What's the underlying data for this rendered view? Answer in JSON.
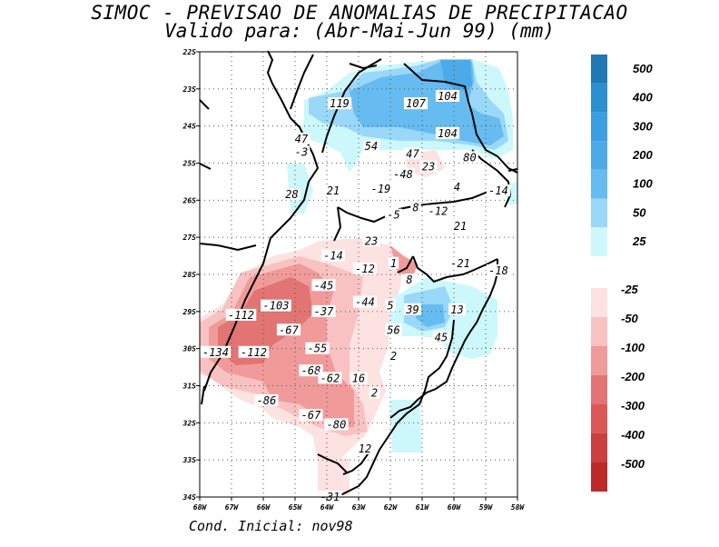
{
  "title_line1": "SIMOC - PREVISAO DE ANOMALIAS DE PRECIPITACAO",
  "title_line2": "Valido para: (Abr-Mai-Jun 99) (mm)",
  "footer": "Cond. Inicial: nov98",
  "map": {
    "lat_labels": [
      "22S",
      "23S",
      "24S",
      "25S",
      "26S",
      "27S",
      "28S",
      "29S",
      "30S",
      "31S",
      "32S",
      "33S",
      "34S"
    ],
    "lon_labels": [
      "68W",
      "67W",
      "66W",
      "65W",
      "64W",
      "63W",
      "62W",
      "61W",
      "60W",
      "59W",
      "58W"
    ],
    "contour_labels": [
      {
        "text": "119",
        "lon": -63.6,
        "lat": -23.4
      },
      {
        "text": "107",
        "lon": -61.2,
        "lat": -23.4
      },
      {
        "text": "104",
        "lon": -60.2,
        "lat": -23.2
      },
      {
        "text": "104",
        "lon": -60.2,
        "lat": -24.2
      },
      {
        "text": "80",
        "lon": -59.5,
        "lat": -24.85
      },
      {
        "text": "47",
        "lon": -64.8,
        "lat": -24.35
      },
      {
        "text": "-3",
        "lon": -64.8,
        "lat": -24.7
      },
      {
        "text": "54",
        "lon": -62.6,
        "lat": -24.55
      },
      {
        "text": "47",
        "lon": -61.3,
        "lat": -24.75
      },
      {
        "text": "23",
        "lon": -60.8,
        "lat": -25.1
      },
      {
        "text": "-48",
        "lon": -61.6,
        "lat": -25.3
      },
      {
        "text": "21",
        "lon": -63.8,
        "lat": -25.75
      },
      {
        "text": "-19",
        "lon": -62.3,
        "lat": -25.7
      },
      {
        "text": "4",
        "lon": -59.9,
        "lat": -25.65
      },
      {
        "text": "-14",
        "lon": -58.6,
        "lat": -25.75
      },
      {
        "text": "28",
        "lon": -65.1,
        "lat": -25.85
      },
      {
        "text": "8",
        "lon": -61.2,
        "lat": -26.2
      },
      {
        "text": "-5",
        "lon": -61.9,
        "lat": -26.4
      },
      {
        "text": "-12",
        "lon": -60.5,
        "lat": -26.3
      },
      {
        "text": "21",
        "lon": -59.8,
        "lat": -26.7
      },
      {
        "text": "23",
        "lon": -62.6,
        "lat": -27.1
      },
      {
        "text": "-14",
        "lon": -63.8,
        "lat": -27.5
      },
      {
        "text": "1",
        "lon": -61.9,
        "lat": -27.7
      },
      {
        "text": "-12",
        "lon": -62.8,
        "lat": -27.85
      },
      {
        "text": "-21",
        "lon": -59.8,
        "lat": -27.7
      },
      {
        "text": "-18",
        "lon": -58.6,
        "lat": -27.9
      },
      {
        "text": "8",
        "lon": -61.4,
        "lat": -28.15
      },
      {
        "text": "-45",
        "lon": -64.1,
        "lat": -28.3
      },
      {
        "text": "-44",
        "lon": -62.8,
        "lat": -28.75
      },
      {
        "text": "5",
        "lon": -62.0,
        "lat": -28.85
      },
      {
        "text": "-103",
        "lon": -65.6,
        "lat": -28.85
      },
      {
        "text": "-37",
        "lon": -64.1,
        "lat": -29.0
      },
      {
        "text": "39",
        "lon": -61.3,
        "lat": -28.95
      },
      {
        "text": "13",
        "lon": -59.9,
        "lat": -28.95
      },
      {
        "text": "-112",
        "lon": -66.7,
        "lat": -29.1
      },
      {
        "text": "56",
        "lon": -61.9,
        "lat": -29.5
      },
      {
        "text": "-67",
        "lon": -65.2,
        "lat": -29.5
      },
      {
        "text": "45",
        "lon": -60.4,
        "lat": -29.7
      },
      {
        "text": "-55",
        "lon": -64.3,
        "lat": -30.0
      },
      {
        "text": "-134",
        "lon": -67.5,
        "lat": -30.1
      },
      {
        "text": "-112",
        "lon": -66.3,
        "lat": -30.1
      },
      {
        "text": "2",
        "lon": -61.9,
        "lat": -30.2
      },
      {
        "text": "-68",
        "lon": -64.5,
        "lat": -30.6
      },
      {
        "text": "-62",
        "lon": -63.9,
        "lat": -30.8
      },
      {
        "text": "16",
        "lon": -63.0,
        "lat": -30.8
      },
      {
        "text": "2",
        "lon": -62.5,
        "lat": -31.2
      },
      {
        "text": "-86",
        "lon": -65.9,
        "lat": -31.4
      },
      {
        "text": "-67",
        "lon": -64.5,
        "lat": -31.8
      },
      {
        "text": "-80",
        "lon": -63.7,
        "lat": -32.05
      },
      {
        "text": "12",
        "lon": -62.8,
        "lat": -32.7
      },
      {
        "text": "-31",
        "lon": -63.9,
        "lat": -34.0
      }
    ]
  },
  "colorbar_pos": [
    {
      "label": "500",
      "color": "#1f78b4"
    },
    {
      "label": "400",
      "color": "#2b8fd0"
    },
    {
      "label": "300",
      "color": "#3a9ee0"
    },
    {
      "label": "200",
      "color": "#4caae8"
    },
    {
      "label": "100",
      "color": "#66bcf0"
    },
    {
      "label": "50",
      "color": "#99d8f8"
    },
    {
      "label": "25",
      "color": "#ccf8fc"
    }
  ],
  "colorbar_neg": [
    {
      "label": "-25",
      "color": "#fde2e2"
    },
    {
      "label": "-50",
      "color": "#f8c2c2"
    },
    {
      "label": "-100",
      "color": "#f19a9a"
    },
    {
      "label": "-200",
      "color": "#e27474"
    },
    {
      "label": "-300",
      "color": "#dc5858"
    },
    {
      "label": "-400",
      "color": "#cc3f3f"
    },
    {
      "label": "-500",
      "color": "#bc2a2a"
    }
  ]
}
